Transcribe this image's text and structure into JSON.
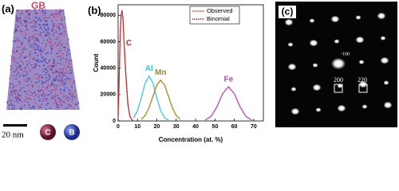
{
  "panel_a": {
    "label": "(a)",
    "annotation": "GB",
    "scale_bar": "20 nm",
    "atoms": [
      "C",
      "B"
    ]
  },
  "chart_data": {
    "type": "line",
    "label": "(b)",
    "x_label": "Concentration (at. %)",
    "y_label": "Count",
    "xlim": [
      0,
      75
    ],
    "xticks": [
      0,
      10,
      20,
      30,
      40,
      50,
      60,
      70
    ],
    "ylim": [
      0,
      88000
    ],
    "yticks": [
      0,
      20000,
      40000,
      60000,
      80000
    ],
    "legend": "upper center",
    "series": [
      {
        "name": "Observed",
        "color": "#b5533c",
        "line_style": "solid"
      },
      {
        "name": "Binomial",
        "color": "#7a1010",
        "line_style": "dotted"
      }
    ],
    "curves": [
      {
        "name": "C",
        "color": "#c0282d",
        "x": [
          0,
          0.5,
          1,
          1.5,
          2,
          2.5,
          3,
          4,
          5,
          6,
          7,
          8
        ],
        "observed": [
          5000,
          30000,
          62000,
          80000,
          84000,
          78000,
          62000,
          35000,
          14000,
          4000,
          1000,
          0
        ],
        "binomial": [
          4000,
          28000,
          60000,
          79000,
          83000,
          77000,
          61000,
          34000,
          13500,
          4000,
          1000,
          0
        ]
      },
      {
        "name": "Al",
        "color": "#3ec6d6",
        "x": [
          8,
          10,
          12,
          14,
          16,
          18,
          20,
          22,
          24,
          26
        ],
        "observed": [
          2500,
          7800,
          17700,
          28900,
          34000,
          28900,
          17700,
          7800,
          2500,
          600
        ],
        "binomial": [
          2400,
          7600,
          17500,
          28700,
          33800,
          28700,
          17500,
          7600,
          2400,
          600
        ]
      },
      {
        "name": "Mn",
        "color": "#9c8a1c",
        "x": [
          12,
          14,
          16,
          18,
          20,
          22,
          24,
          26,
          28,
          30,
          32
        ],
        "observed": [
          1400,
          4200,
          10100,
          18800,
          27300,
          31000,
          27300,
          18800,
          10100,
          4200,
          1400
        ],
        "binomial": [
          1300,
          4100,
          10000,
          18700,
          27200,
          30800,
          27200,
          18700,
          10000,
          4100,
          1300
        ]
      },
      {
        "name": "Fe",
        "color": "#c040b8",
        "x": [
          45,
          48,
          51,
          54,
          57,
          60,
          63,
          66,
          69
        ],
        "observed": [
          700,
          3500,
          10700,
          20800,
          26000,
          20800,
          10700,
          3500,
          700
        ],
        "binomial": [
          700,
          3400,
          10600,
          20700,
          25800,
          20700,
          10600,
          3400,
          700
        ]
      }
    ]
  },
  "panel_c": {
    "label": "(c)",
    "spots": [
      "-100",
      "200",
      "220"
    ]
  }
}
